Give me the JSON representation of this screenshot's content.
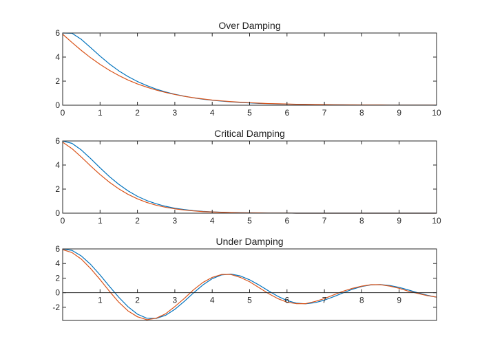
{
  "chart_data": [
    {
      "type": "line",
      "title": "Over Damping",
      "xlabel": "",
      "ylabel": "",
      "xlim": [
        0,
        10
      ],
      "ylim": [
        0,
        6
      ],
      "xticks": [
        "0",
        "1",
        "2",
        "3",
        "4",
        "5",
        "6",
        "7",
        "8",
        "9",
        "10"
      ],
      "yticks": [
        "0",
        "2",
        "4",
        "6"
      ],
      "x_axis_at_zero": false,
      "grid": false,
      "legend": "none",
      "x": [
        0,
        0.25,
        0.5,
        0.75,
        1,
        1.25,
        1.5,
        1.75,
        2,
        2.25,
        2.5,
        2.75,
        3,
        3.25,
        3.5,
        3.75,
        4,
        4.25,
        4.5,
        4.75,
        5,
        5.25,
        5.5,
        5.75,
        6,
        6.25,
        6.5,
        6.75,
        7,
        7.25,
        7.5,
        7.75,
        8,
        8.25,
        8.5,
        8.75,
        9,
        9.25,
        9.5,
        9.75,
        10
      ],
      "series": [
        {
          "color": "#0072bd",
          "values": [
            6.0,
            5.98,
            5.47,
            4.78,
            4.08,
            3.43,
            2.86,
            2.38,
            1.97,
            1.63,
            1.34,
            1.1,
            0.91,
            0.75,
            0.61,
            0.5,
            0.41,
            0.34,
            0.28,
            0.23,
            0.19,
            0.15,
            0.13,
            0.1,
            0.09,
            0.07,
            0.06,
            0.05,
            0.04,
            0.03,
            0.03,
            0.02,
            0.02,
            0.02,
            0.01,
            0.01,
            0.01,
            0.01,
            0.01,
            0.01,
            0.0
          ]
        },
        {
          "color": "#d95319",
          "values": [
            5.9,
            5.21,
            4.55,
            3.94,
            3.39,
            2.9,
            2.47,
            2.09,
            1.77,
            1.5,
            1.26,
            1.06,
            0.89,
            0.74,
            0.62,
            0.52,
            0.43,
            0.36,
            0.3,
            0.25,
            0.21,
            0.17,
            0.14,
            0.12,
            0.1,
            0.08,
            0.07,
            0.06,
            0.05,
            0.04,
            0.03,
            0.03,
            0.02,
            0.02,
            0.02,
            0.01,
            0.01,
            0.01,
            0.01,
            0.01,
            0.01
          ]
        }
      ]
    },
    {
      "type": "line",
      "title": "Critical Damping",
      "xlabel": "",
      "ylabel": "",
      "xlim": [
        0,
        10
      ],
      "ylim": [
        0,
        6
      ],
      "xticks": [
        "0",
        "1",
        "2",
        "3",
        "4",
        "5",
        "6",
        "7",
        "8",
        "9",
        "10"
      ],
      "yticks": [
        "0",
        "2",
        "4",
        "6"
      ],
      "x_axis_at_zero": false,
      "grid": false,
      "legend": "none",
      "x": [
        0,
        0.25,
        0.5,
        0.75,
        1,
        1.25,
        1.5,
        1.75,
        2,
        2.25,
        2.5,
        2.75,
        3,
        3.25,
        3.5,
        3.75,
        4,
        4.25,
        4.5,
        4.75,
        5,
        5.25,
        5.5,
        5.75,
        6,
        6.25,
        6.5,
        6.75,
        7,
        7.25,
        7.5,
        7.75,
        8,
        8.25,
        8.5,
        8.75,
        9,
        9.25,
        9.5,
        9.75,
        10
      ],
      "series": [
        {
          "color": "#0072bd",
          "values": [
            6.0,
            5.8,
            5.25,
            4.53,
            3.77,
            3.04,
            2.4,
            1.85,
            1.4,
            1.05,
            0.78,
            0.57,
            0.41,
            0.3,
            0.21,
            0.15,
            0.11,
            0.08,
            0.05,
            0.04,
            0.03,
            0.02,
            0.01,
            0.01,
            0.01,
            0.0,
            0.0,
            0.0,
            0.0,
            0.0,
            0.0,
            0.0,
            0.0,
            0.0,
            0.0,
            0.0,
            0.0,
            0.0,
            0.0,
            0.0,
            0.0
          ]
        },
        {
          "color": "#d95319",
          "values": [
            5.9,
            5.36,
            4.66,
            3.92,
            3.21,
            2.57,
            2.02,
            1.56,
            1.19,
            0.89,
            0.66,
            0.49,
            0.36,
            0.26,
            0.19,
            0.13,
            0.1,
            0.07,
            0.05,
            0.03,
            0.02,
            0.02,
            0.01,
            0.01,
            0.01,
            0.0,
            0.0,
            0.0,
            0.0,
            0.0,
            0.0,
            0.0,
            0.0,
            0.0,
            0.0,
            0.0,
            0.0,
            0.0,
            0.0,
            0.0,
            0.0
          ]
        }
      ]
    },
    {
      "type": "line",
      "title": "Under Damping",
      "xlabel": "",
      "ylabel": "",
      "xlim": [
        0,
        10
      ],
      "ylim": [
        -3.8,
        6
      ],
      "xticks": [
        "1",
        "2",
        "3",
        "4",
        "5",
        "6",
        "7",
        "8",
        "9"
      ],
      "yticks": [
        "-2",
        "0",
        "2",
        "4",
        "6"
      ],
      "x_axis_at_zero": true,
      "grid": false,
      "legend": "none",
      "x": [
        0,
        0.25,
        0.5,
        0.75,
        1,
        1.25,
        1.5,
        1.75,
        2,
        2.25,
        2.5,
        2.75,
        3,
        3.25,
        3.5,
        3.75,
        4,
        4.25,
        4.5,
        4.75,
        5,
        5.25,
        5.5,
        5.75,
        6,
        6.25,
        6.5,
        6.75,
        7,
        7.25,
        7.5,
        7.75,
        8,
        8.25,
        8.5,
        8.75,
        9,
        9.25,
        9.5,
        9.75,
        10
      ],
      "series": [
        {
          "color": "#0072bd",
          "values": [
            6.0,
            5.8,
            5.03,
            3.87,
            2.43,
            0.88,
            -0.62,
            -1.93,
            -2.94,
            -3.5,
            -3.53,
            -3.1,
            -2.28,
            -1.2,
            -0.03,
            1.06,
            1.92,
            2.44,
            2.55,
            2.3,
            1.77,
            1.06,
            0.27,
            -0.48,
            -1.07,
            -1.43,
            -1.52,
            -1.37,
            -1.02,
            -0.54,
            -0.02,
            0.47,
            0.85,
            1.07,
            1.11,
            0.99,
            0.73,
            0.37,
            -0.01,
            -0.35,
            -0.62
          ]
        },
        {
          "color": "#d95319",
          "values": [
            5.9,
            5.5,
            4.6,
            3.3,
            1.8,
            0.2,
            -1.3,
            -2.5,
            -3.3,
            -3.7,
            -3.5,
            -2.9,
            -1.9,
            -0.8,
            0.4,
            1.4,
            2.1,
            2.5,
            2.5,
            2.1,
            1.5,
            0.7,
            -0.1,
            -0.8,
            -1.3,
            -1.5,
            -1.5,
            -1.2,
            -0.8,
            -0.3,
            0.2,
            0.6,
            0.9,
            1.1,
            1.1,
            0.9,
            0.6,
            0.2,
            -0.1,
            -0.4,
            -0.6
          ]
        }
      ]
    }
  ]
}
